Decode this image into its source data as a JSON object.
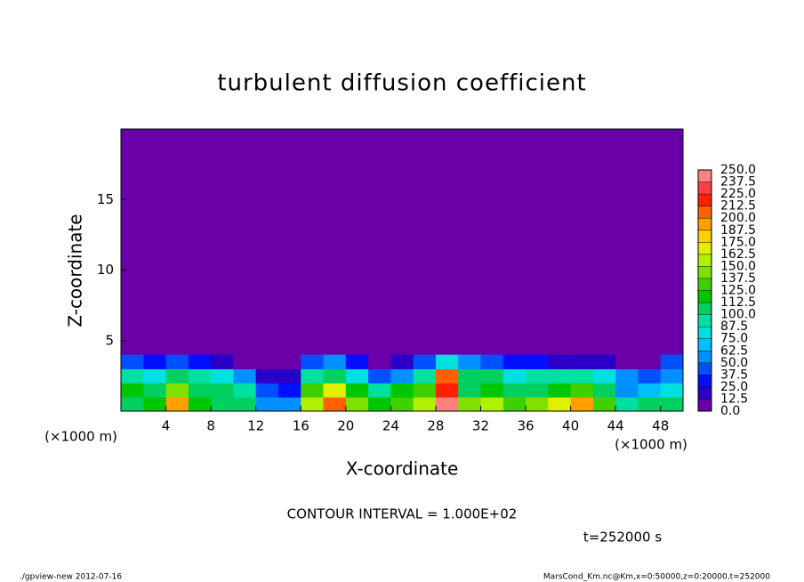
{
  "chart_data": {
    "type": "heatmap",
    "title": "turbulent diffusion coefficient",
    "x_label": "X-coordinate",
    "y_label": "Z-coordinate",
    "x_unit_label": "(×1000 m)",
    "y_unit_label": "(×1000 m)",
    "xlim": [
      0,
      50
    ],
    "ylim": [
      0,
      20
    ],
    "xticks": [
      4,
      8,
      12,
      16,
      20,
      24,
      28,
      32,
      36,
      40,
      44,
      48
    ],
    "yticks": [
      5,
      10,
      15
    ],
    "x": [
      1,
      3,
      5,
      7,
      9,
      11,
      13,
      15,
      17,
      19,
      21,
      23,
      25,
      27,
      29,
      31,
      33,
      35,
      37,
      39,
      41,
      43,
      45,
      47,
      49
    ],
    "y": [
      0.5,
      1.5,
      2.5,
      3.5
    ],
    "values": [
      [
        110,
        120,
        190,
        120,
        110,
        100,
        60,
        50,
        150,
        200,
        140,
        120,
        130,
        150,
        240,
        140,
        150,
        130,
        140,
        170,
        190,
        130,
        90,
        100,
        110
      ],
      [
        120,
        110,
        140,
        100,
        110,
        90,
        40,
        30,
        130,
        170,
        120,
        90,
        120,
        130,
        220,
        110,
        120,
        100,
        110,
        120,
        130,
        110,
        60,
        70,
        80
      ],
      [
        90,
        80,
        100,
        90,
        80,
        60,
        20,
        20,
        90,
        110,
        80,
        40,
        60,
        90,
        200,
        100,
        100,
        80,
        90,
        90,
        90,
        80,
        50,
        40,
        60
      ],
      [
        40,
        30,
        40,
        30,
        20,
        10,
        5,
        10,
        40,
        60,
        30,
        10,
        20,
        40,
        80,
        50,
        40,
        30,
        30,
        20,
        20,
        20,
        10,
        10,
        40
      ]
    ],
    "levels": [
      {
        "value": 0,
        "label": "0.0"
      },
      {
        "value": 12.5,
        "label": "12.5"
      },
      {
        "value": 25,
        "label": "25.0"
      },
      {
        "value": 37.5,
        "label": "37.5"
      },
      {
        "value": 50,
        "label": "50.0"
      },
      {
        "value": 62.5,
        "label": "62.5"
      },
      {
        "value": 75,
        "label": "75.0"
      },
      {
        "value": 87.5,
        "label": "87.5"
      },
      {
        "value": 100,
        "label": "100.0"
      },
      {
        "value": 112.5,
        "label": "112.5"
      },
      {
        "value": 125,
        "label": "125.0"
      },
      {
        "value": 137.5,
        "label": "137.5"
      },
      {
        "value": 150,
        "label": "150.0"
      },
      {
        "value": 162.5,
        "label": "162.5"
      },
      {
        "value": 175,
        "label": "175.0"
      },
      {
        "value": 187.5,
        "label": "187.5"
      },
      {
        "value": 200,
        "label": "200.0"
      },
      {
        "value": 212.5,
        "label": "212.5"
      },
      {
        "value": 225,
        "label": "225.0"
      },
      {
        "value": 237.5,
        "label": "237.5"
      },
      {
        "value": 250,
        "label": "250.0"
      }
    ],
    "level_colors": [
      "#6a00a8",
      "#2a00c8",
      "#0010ff",
      "#0050ff",
      "#0090ff",
      "#00c0ff",
      "#00e0e0",
      "#00e0a0",
      "#00d060",
      "#00c800",
      "#40d000",
      "#80e000",
      "#b0f000",
      "#e0f000",
      "#ffd000",
      "#ffa000",
      "#ff6000",
      "#ff2000",
      "#ff4040",
      "#ff8080"
    ],
    "contour_interval": "CONTOUR INTERVAL = 1.000E+02",
    "time_label": "t=252000 s",
    "footer_left": "./gpview-new  2012-07-16",
    "footer_right": "MarsCond_Km.nc@Km,x=0:50000,z=0:20000,t=252000"
  }
}
